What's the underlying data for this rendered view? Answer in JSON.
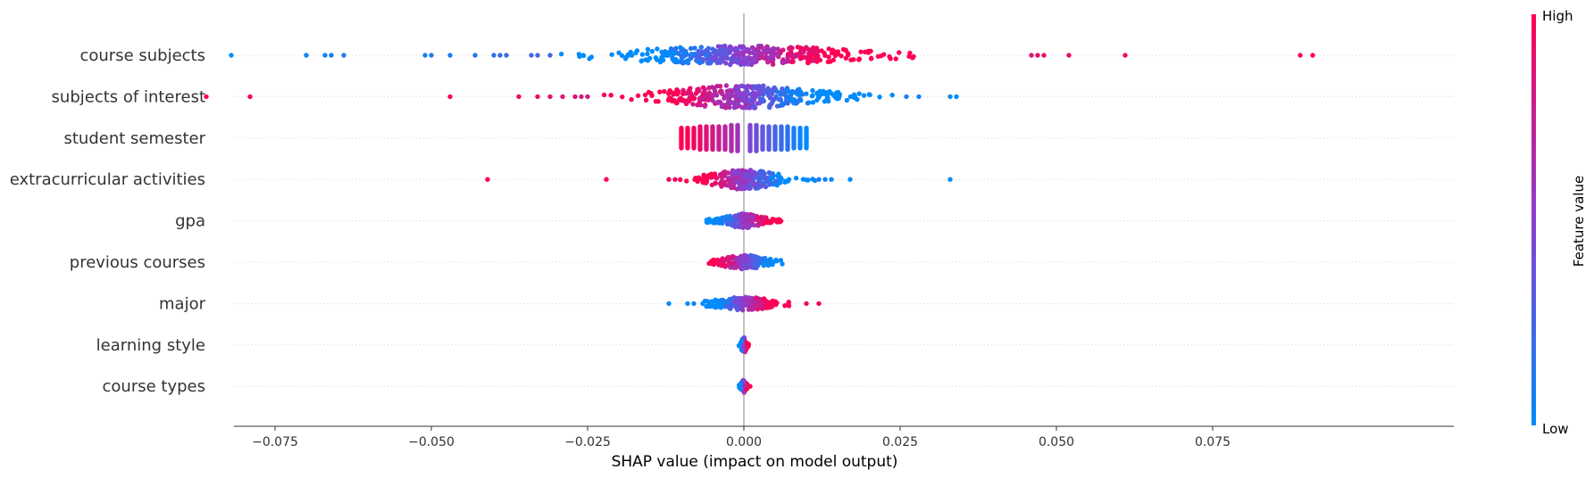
{
  "chart_data": {
    "type": "scatter",
    "subtype": "shap-beeswarm",
    "xlabel": "SHAP value (impact on model output)",
    "xlim": [
      -0.095,
      0.1
    ],
    "xticks": [
      -0.075,
      -0.05,
      -0.025,
      0.0,
      0.025,
      0.05,
      0.075
    ],
    "xtick_labels": [
      "−0.075",
      "−0.050",
      "−0.025",
      "0.000",
      "0.025",
      "0.050",
      "0.075"
    ],
    "colorbar": {
      "label": "Feature value",
      "high_label": "High",
      "low_label": "Low",
      "low_color": "#008bfb",
      "high_color": "#ff0052"
    },
    "features": [
      {
        "name": "course subjects",
        "points": [
          [
            -0.082,
            0.0
          ],
          [
            -0.07,
            0.05
          ],
          [
            -0.067,
            0.05
          ],
          [
            -0.066,
            0.1
          ],
          [
            -0.064,
            0.1
          ],
          [
            -0.051,
            0.1
          ],
          [
            -0.05,
            0.1
          ],
          [
            -0.047,
            0.1
          ],
          [
            -0.043,
            0.15
          ],
          [
            -0.04,
            0.2
          ],
          [
            -0.039,
            0.2
          ],
          [
            -0.038,
            0.2
          ],
          [
            -0.034,
            0.25
          ],
          [
            -0.033,
            0.25
          ],
          [
            -0.031,
            0.25
          ],
          [
            0.046,
            0.85
          ],
          [
            0.047,
            0.9
          ],
          [
            0.048,
            0.9
          ],
          [
            0.052,
            0.9
          ],
          [
            0.061,
            0.95
          ],
          [
            0.089,
            1.0
          ],
          [
            0.091,
            1.0
          ]
        ],
        "bulk": {
          "min": -0.03,
          "max": 0.038,
          "center": 0.0,
          "spread": 0.01,
          "width": 0.4,
          "count": 420,
          "direction": "positive",
          "cspread": 0.012
        }
      },
      {
        "name": "subjects of interest",
        "points": [
          [
            -0.086,
            1.0
          ],
          [
            -0.079,
            1.0
          ],
          [
            -0.047,
            0.95
          ],
          [
            -0.036,
            0.9
          ],
          [
            -0.033,
            0.9
          ],
          [
            -0.031,
            0.85
          ],
          [
            -0.029,
            0.85
          ],
          [
            -0.027,
            0.85
          ],
          [
            -0.026,
            0.8
          ],
          [
            -0.025,
            0.8
          ],
          [
            0.026,
            0.1
          ],
          [
            0.028,
            0.05
          ],
          [
            0.033,
            0.0
          ],
          [
            0.034,
            0.0
          ]
        ],
        "bulk": {
          "min": -0.024,
          "max": 0.025,
          "center": 0.0,
          "spread": 0.008,
          "width": 0.5,
          "count": 380,
          "direction": "negative",
          "cspread": 0.01
        }
      },
      {
        "name": "student semester",
        "points": [
          [
            -0.01,
            1.0
          ],
          [
            -0.009,
            1.0
          ],
          [
            -0.008,
            0.95
          ],
          [
            -0.007,
            0.9
          ],
          [
            -0.006,
            0.85
          ],
          [
            -0.005,
            0.8
          ],
          [
            -0.004,
            0.75
          ],
          [
            -0.003,
            0.7
          ],
          [
            -0.002,
            0.65
          ],
          [
            -0.001,
            0.6
          ],
          [
            0.001,
            0.45
          ],
          [
            0.002,
            0.4
          ],
          [
            0.003,
            0.35
          ],
          [
            0.004,
            0.3
          ],
          [
            0.005,
            0.25
          ],
          [
            0.006,
            0.2
          ],
          [
            0.007,
            0.15
          ],
          [
            0.008,
            0.1
          ],
          [
            0.009,
            0.05
          ],
          [
            0.01,
            0.0
          ]
        ],
        "bulk": null
      },
      {
        "name": "extracurricular activities",
        "points": [
          [
            -0.041,
            1.0
          ],
          [
            -0.022,
            1.0
          ],
          [
            -0.012,
            0.95
          ],
          [
            -0.011,
            0.95
          ],
          [
            0.012,
            0.1
          ],
          [
            0.013,
            0.05
          ],
          [
            0.014,
            0.05
          ],
          [
            0.017,
            0.0
          ],
          [
            0.033,
            0.0
          ]
        ],
        "bulk": {
          "min": -0.011,
          "max": 0.012,
          "center": 0.0,
          "spread": 0.004,
          "width": 0.42,
          "count": 260,
          "direction": "negative",
          "cspread": 0.006
        }
      },
      {
        "name": "gpa",
        "points": [],
        "bulk": {
          "min": -0.006,
          "max": 0.006,
          "center": 0.0,
          "spread": 0.0035,
          "width": 0.28,
          "count": 180,
          "direction": "positive",
          "cspread": 0.004
        }
      },
      {
        "name": "previous courses",
        "points": [],
        "bulk": {
          "min": -0.006,
          "max": 0.007,
          "center": 0.0,
          "spread": 0.003,
          "width": 0.28,
          "count": 170,
          "direction": "negative",
          "cspread": 0.004
        }
      },
      {
        "name": "major",
        "points": [
          [
            -0.012,
            0.0
          ],
          [
            -0.009,
            0.0
          ],
          [
            -0.008,
            0.05
          ],
          [
            0.01,
            0.95
          ],
          [
            0.012,
            1.0
          ]
        ],
        "bulk": {
          "min": -0.007,
          "max": 0.01,
          "center": 0.0,
          "spread": 0.003,
          "width": 0.25,
          "count": 170,
          "direction": "positive",
          "cspread": 0.004
        }
      },
      {
        "name": "learning style",
        "points": [],
        "bulk": {
          "min": -0.0008,
          "max": 0.0008,
          "center": 0.0,
          "spread": 0.0004,
          "width": 0.34,
          "count": 80,
          "direction": "positive",
          "cspread": 0.0003
        }
      },
      {
        "name": "course types",
        "points": [
          [
            0.001,
            1.0
          ]
        ],
        "bulk": {
          "min": -0.0008,
          "max": 0.0008,
          "center": 0.0,
          "spread": 0.0003,
          "width": 0.24,
          "count": 60,
          "direction": "positive",
          "cspread": 0.0004
        }
      }
    ]
  }
}
